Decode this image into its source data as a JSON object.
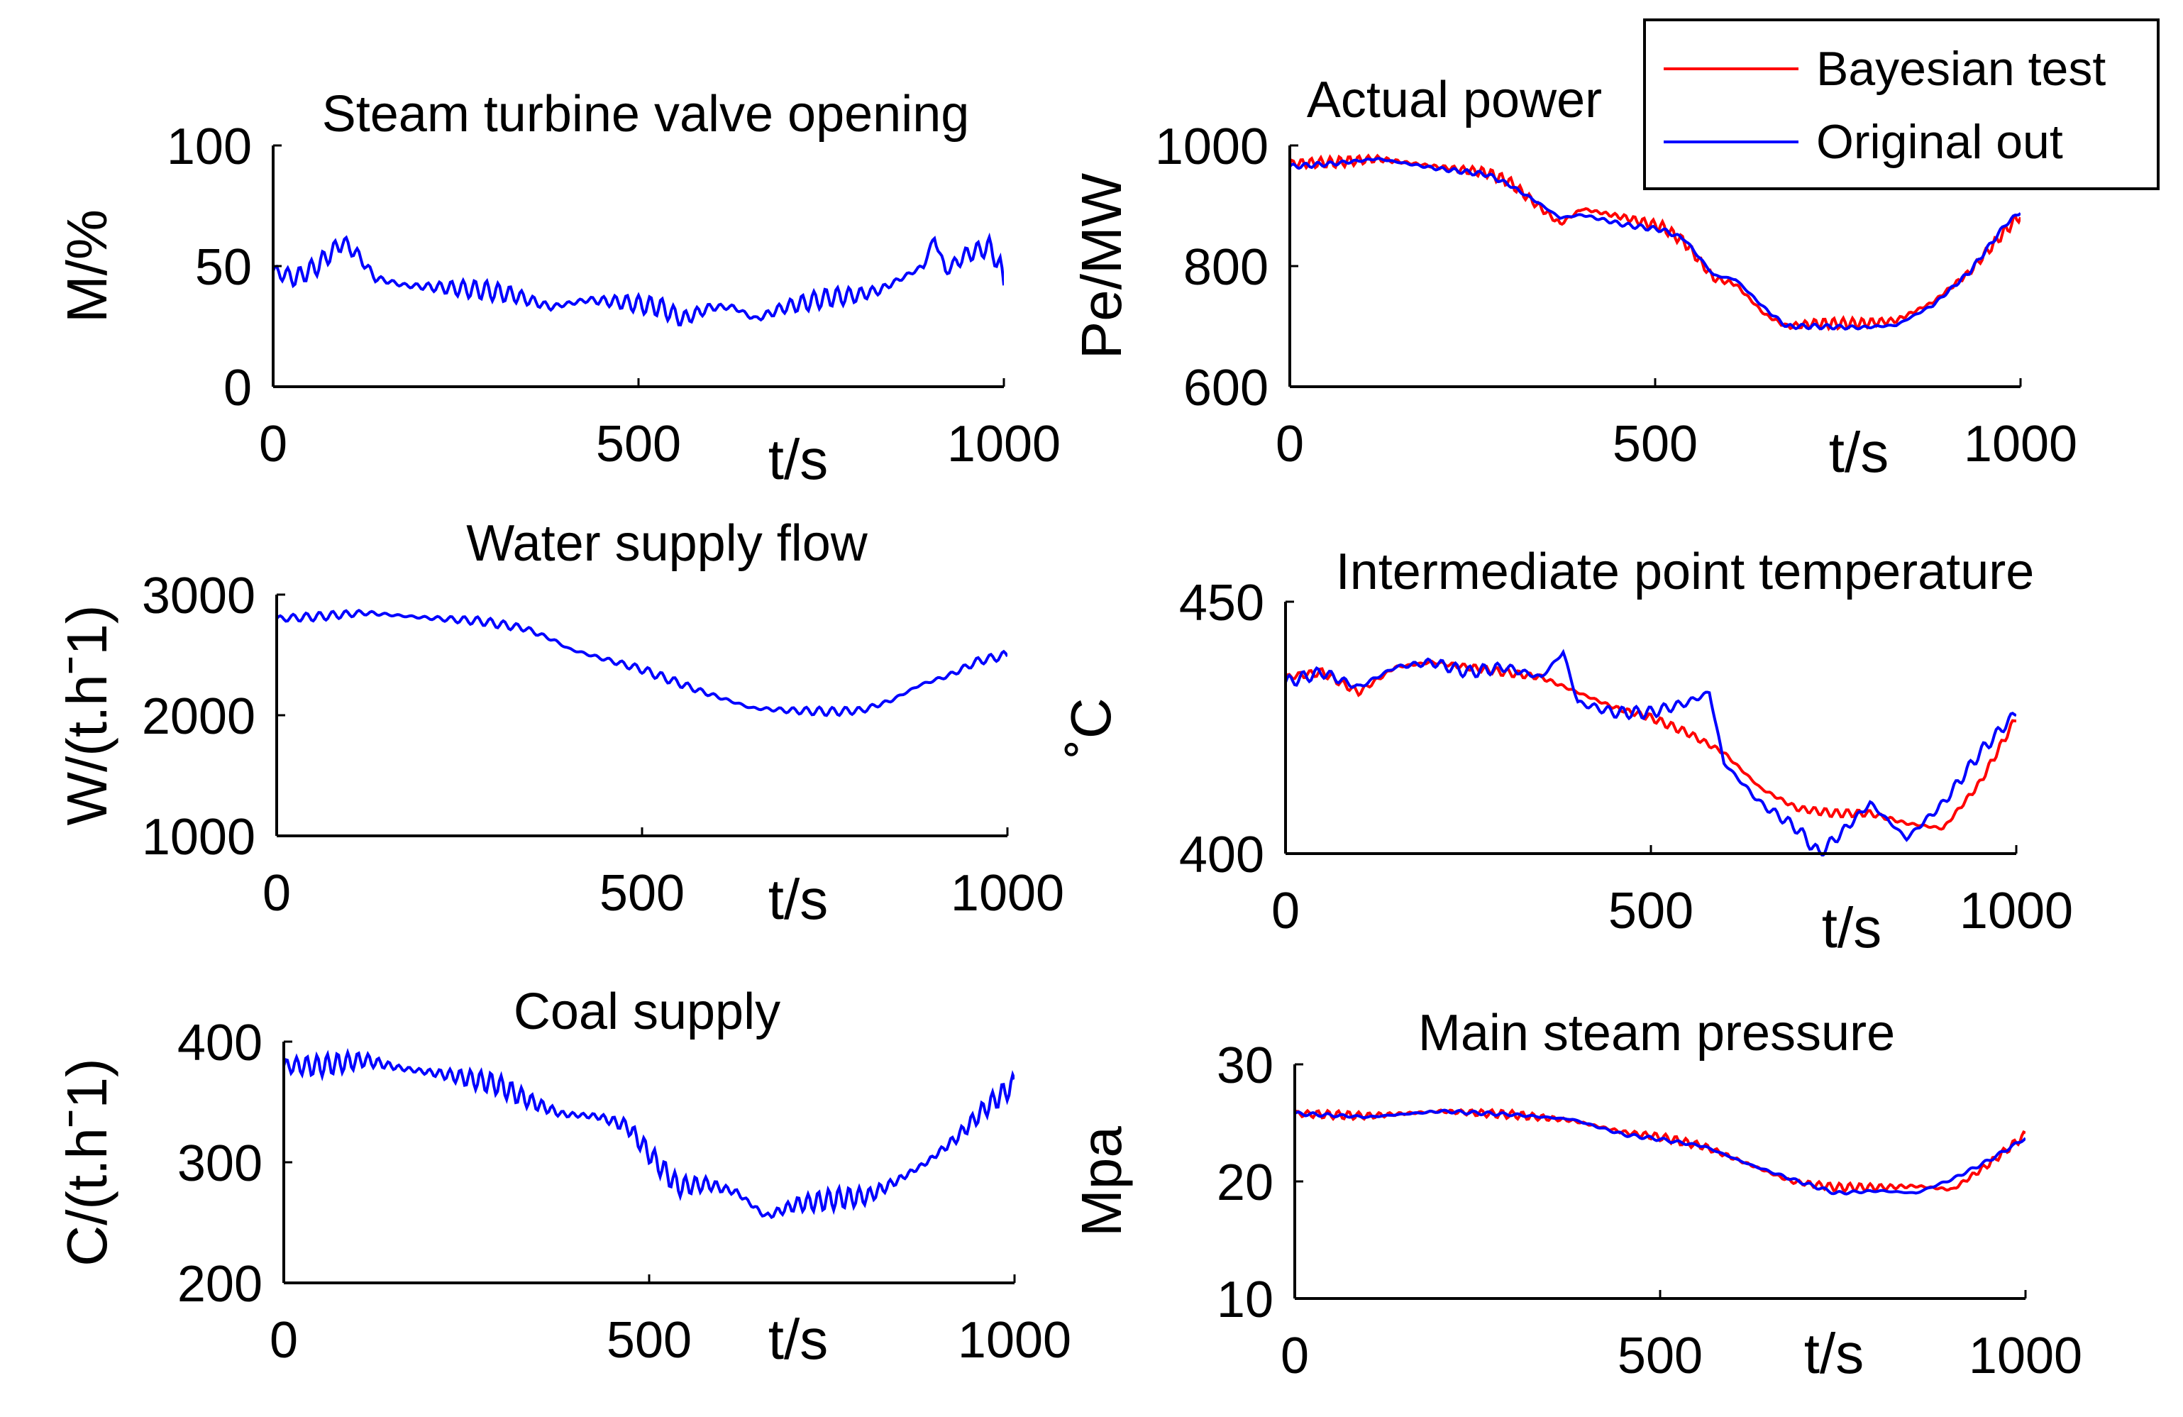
{
  "colors": {
    "bayesian": "#ff0000",
    "original": "#0000ff",
    "axis": "#000000"
  },
  "legend": {
    "entries": [
      {
        "label": "Bayesian test",
        "color": "#ff0000"
      },
      {
        "label": "Original out",
        "color": "#0000ff"
      }
    ],
    "placement": "top-right"
  },
  "chart_data": [
    {
      "type": "line",
      "title": "Steam turbine valve opening",
      "xlabel": "t/s",
      "ylabel": "M/%",
      "xlim": [
        0,
        1000
      ],
      "ylim": [
        0,
        100
      ],
      "xticks": [
        "0",
        "500",
        "1000"
      ],
      "yticks": [
        "0",
        "50",
        "100"
      ],
      "grid": false,
      "series": [
        {
          "name": "Original out",
          "color": "#0000ff",
          "noise": 4,
          "period": 16,
          "x": [
            0,
            30,
            60,
            95,
            115,
            140,
            180,
            240,
            290,
            330,
            380,
            430,
            480,
            530,
            560,
            600,
            630,
            660,
            700,
            760,
            800,
            830,
            860,
            890,
            905,
            920,
            950,
            980,
            995,
            1000
          ],
          "y": [
            48,
            45,
            50,
            60,
            55,
            45,
            42,
            41,
            40,
            38,
            33,
            36,
            35,
            33,
            28,
            33,
            33,
            28,
            33,
            37,
            38,
            40,
            45,
            50,
            62,
            48,
            55,
            58,
            50,
            42
          ]
        }
      ]
    },
    {
      "type": "line",
      "title": "Water supply flow",
      "xlabel": "t/s",
      "ylabel": "W/(t.hˉ1)",
      "xlim": [
        0,
        1000
      ],
      "ylim": [
        1000,
        3000
      ],
      "xticks": [
        "0",
        "500",
        "1000"
      ],
      "yticks": [
        "1000",
        "2000",
        "3000"
      ],
      "grid": false,
      "series": [
        {
          "name": "Original out",
          "color": "#0000ff",
          "noise": 35,
          "period": 18,
          "x": [
            0,
            60,
            120,
            200,
            280,
            340,
            380,
            400,
            440,
            500,
            540,
            580,
            620,
            650,
            700,
            760,
            800,
            840,
            880,
            920,
            960,
            1000
          ],
          "y": [
            2800,
            2820,
            2850,
            2810,
            2780,
            2720,
            2620,
            2550,
            2480,
            2380,
            2290,
            2200,
            2120,
            2060,
            2040,
            2030,
            2040,
            2120,
            2250,
            2330,
            2450,
            2500
          ]
        }
      ]
    },
    {
      "type": "line",
      "title": "Coal supply",
      "xlabel": "t/s",
      "ylabel": "C/(t.hˉ1)",
      "xlim": [
        0,
        1000
      ],
      "ylim": [
        200,
        400
      ],
      "xticks": [
        "0",
        "500",
        "1000"
      ],
      "yticks": [
        "200",
        "300",
        "400"
      ],
      "grid": false,
      "series": [
        {
          "name": "Original out",
          "color": "#0000ff",
          "noise": 9,
          "period": 14,
          "x": [
            0,
            50,
            110,
            160,
            230,
            290,
            340,
            380,
            430,
            470,
            510,
            540,
            580,
            620,
            660,
            700,
            760,
            800,
            840,
            880,
            920,
            960,
            1000
          ],
          "y": [
            380,
            380,
            385,
            378,
            372,
            365,
            350,
            340,
            338,
            330,
            300,
            280,
            282,
            275,
            255,
            265,
            270,
            272,
            285,
            300,
            320,
            345,
            365
          ]
        }
      ]
    },
    {
      "type": "line",
      "title": "Actual power",
      "xlabel": "t/s",
      "ylabel": "Pe/MW",
      "xlim": [
        0,
        1000
      ],
      "ylim": [
        600,
        1000
      ],
      "xticks": [
        "0",
        "500",
        "1000"
      ],
      "yticks": [
        "600",
        "800",
        "1000"
      ],
      "grid": false,
      "series": [
        {
          "name": "Bayesian test",
          "color": "#ff0000",
          "noise": 9,
          "period": 13,
          "x": [
            0,
            60,
            120,
            200,
            270,
            300,
            340,
            370,
            400,
            460,
            510,
            540,
            580,
            610,
            650,
            680,
            720,
            780,
            830,
            880,
            930,
            980,
            1000
          ],
          "y": [
            970,
            972,
            978,
            965,
            955,
            940,
            900,
            870,
            895,
            880,
            865,
            840,
            780,
            770,
            720,
            700,
            705,
            705,
            710,
            740,
            790,
            860,
            885
          ]
        },
        {
          "name": "Original out",
          "color": "#0000ff",
          "noise": 4,
          "period": 17,
          "x": [
            0,
            60,
            120,
            200,
            270,
            300,
            340,
            370,
            400,
            460,
            510,
            540,
            580,
            610,
            650,
            680,
            720,
            780,
            830,
            880,
            930,
            980,
            1000
          ],
          "y": [
            965,
            970,
            978,
            962,
            952,
            935,
            905,
            880,
            885,
            868,
            860,
            845,
            785,
            778,
            730,
            700,
            700,
            698,
            702,
            735,
            790,
            870,
            890
          ]
        }
      ]
    },
    {
      "type": "line",
      "title": "Intermediate point temperature",
      "xlabel": "t/s",
      "ylabel": "˚C",
      "xlim": [
        0,
        1000
      ],
      "ylim": [
        400,
        450
      ],
      "xticks": [
        "0",
        "500",
        "1000"
      ],
      "yticks": [
        "400",
        "450"
      ],
      "grid": false,
      "series": [
        {
          "name": "Bayesian test",
          "color": "#ff0000",
          "noise": 0.8,
          "period": 15,
          "x": [
            0,
            50,
            100,
            150,
            200,
            250,
            300,
            350,
            400,
            450,
            500,
            550,
            600,
            650,
            700,
            750,
            800,
            850,
            900,
            950,
            1000
          ],
          "y": [
            435,
            436,
            432,
            437,
            438,
            437,
            436,
            435,
            432,
            429,
            427,
            424,
            420,
            413,
            409,
            408,
            408,
            406,
            405,
            414,
            427
          ]
        },
        {
          "name": "Original out",
          "color": "#0000ff",
          "noise": 1.2,
          "period": 19,
          "x": [
            0,
            50,
            100,
            150,
            200,
            250,
            300,
            350,
            380,
            400,
            450,
            500,
            550,
            580,
            600,
            650,
            700,
            730,
            760,
            800,
            850,
            900,
            950,
            1000
          ],
          "y": [
            434,
            436,
            433,
            437,
            438,
            436,
            437,
            435,
            440,
            430,
            428,
            428,
            430,
            432,
            418,
            410,
            405,
            400,
            404,
            410,
            403,
            410,
            420,
            428
          ]
        }
      ]
    },
    {
      "type": "line",
      "title": "Main steam pressure",
      "xlabel": "t/s",
      "ylabel": "Mpa",
      "xlim": [
        0,
        1000
      ],
      "ylim": [
        10,
        30
      ],
      "xticks": [
        "0",
        "500",
        "1000"
      ],
      "yticks": [
        "10",
        "20",
        "30"
      ],
      "grid": false,
      "series": [
        {
          "name": "Bayesian test",
          "color": "#ff0000",
          "noise": 0.35,
          "period": 14,
          "x": [
            0,
            100,
            200,
            300,
            380,
            450,
            500,
            560,
            620,
            680,
            740,
            800,
            850,
            900,
            950,
            1000
          ],
          "y": [
            25.8,
            25.6,
            26.0,
            25.7,
            25.2,
            24.2,
            23.8,
            23.0,
            21.5,
            20.0,
            19.5,
            19.5,
            19.6,
            19.3,
            21.5,
            24.0
          ]
        },
        {
          "name": "Original out",
          "color": "#0000ff",
          "noise": 0.15,
          "period": 20,
          "x": [
            0,
            100,
            200,
            300,
            380,
            450,
            500,
            560,
            620,
            680,
            740,
            800,
            850,
            900,
            950,
            1000
          ],
          "y": [
            25.8,
            25.5,
            26.0,
            25.7,
            25.3,
            24.0,
            23.6,
            23.0,
            21.5,
            20.2,
            19.0,
            19.2,
            19.0,
            20.2,
            21.8,
            23.7
          ]
        }
      ]
    }
  ]
}
